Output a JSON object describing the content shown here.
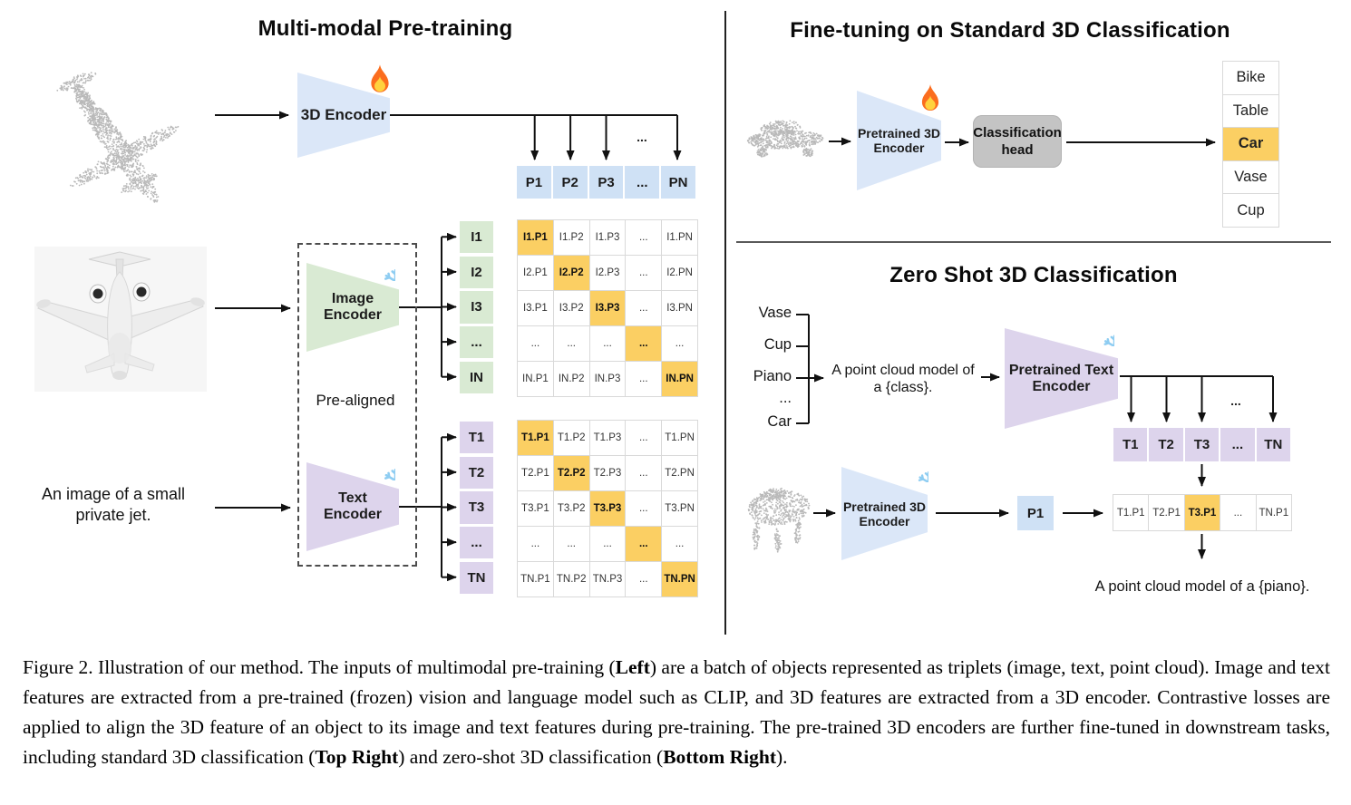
{
  "colors": {
    "blue": "#dbe7f8",
    "bluecell": "#cfe1f5",
    "green": "#d9ead3",
    "purple": "#ddd4ec",
    "orange": "#fbcf63",
    "gray": "#c4c4c4",
    "dot": "#b9b9b9",
    "border": "#d9d9d9"
  },
  "pretraining": {
    "title": "Multi-modal Pre-training",
    "encoder3d_label": "3D Encoder",
    "encoder3d_icon": "fire",
    "image_encoder_label": "Image\nEncoder",
    "image_encoder_icon": "snowflake",
    "text_encoder_label": "Text\nEncoder",
    "text_encoder_icon": "snowflake",
    "prealigned_label": "Pre-aligned",
    "jet_text": "An image of a small private jet.",
    "p_row": [
      "P1",
      "P2",
      "P3",
      "...",
      "PN"
    ],
    "i_labels": [
      "I1",
      "I2",
      "I3",
      "...",
      "IN"
    ],
    "t_labels": [
      "T1",
      "T2",
      "T3",
      "...",
      "TN"
    ],
    "i_matrix": [
      [
        "I1.P1",
        "I1.P2",
        "I1.P3",
        "...",
        "I1.PN"
      ],
      [
        "I2.P1",
        "I2.P2",
        "I2.P3",
        "...",
        "I2.PN"
      ],
      [
        "I3.P1",
        "I3.P2",
        "I3.P3",
        "...",
        "I3.PN"
      ],
      [
        "...",
        "...",
        "...",
        "...",
        "..."
      ],
      [
        "IN.P1",
        "IN.P2",
        "IN.P3",
        "...",
        "IN.PN"
      ]
    ],
    "t_matrix": [
      [
        "T1.P1",
        "T1.P2",
        "T1.P3",
        "...",
        "T1.PN"
      ],
      [
        "T2.P1",
        "T2.P2",
        "T2.P3",
        "...",
        "T2.PN"
      ],
      [
        "T3.P1",
        "T3.P2",
        "T3.P3",
        "...",
        "T3.PN"
      ],
      [
        "...",
        "...",
        "...",
        "...",
        "..."
      ],
      [
        "TN.P1",
        "TN.P2",
        "TN.P3",
        "...",
        "TN.PN"
      ]
    ]
  },
  "finetune": {
    "title": "Fine-tuning on Standard 3D Classification",
    "encoder_label": "Pretrained 3D\nEncoder",
    "encoder_icon": "fire",
    "head_label": "Classification\nhead",
    "classes": [
      "Bike",
      "Table",
      "Car",
      "Vase",
      "Cup"
    ],
    "highlighted_class": "Car"
  },
  "zeroshot": {
    "title": "Zero Shot 3D Classification",
    "prompt_classes": [
      "Vase",
      "Cup",
      "Piano",
      "...",
      "Car"
    ],
    "prompt_text": "A point cloud model of\na {class}.",
    "text_encoder_label": "Pretrained Text\nEncoder",
    "text_encoder_icon": "snowflake",
    "encoder3d_label": "Pretrained 3D\nEncoder",
    "encoder3d_icon": "snowflake",
    "t_row": [
      "T1",
      "T2",
      "T3",
      "...",
      "TN"
    ],
    "p1_label": "P1",
    "sim_row": [
      "T1.P1",
      "T2.P1",
      "T3.P1",
      "...",
      "TN.P1"
    ],
    "highlight_index": 2,
    "result_text": "A point cloud model of a {piano}."
  },
  "misc": {
    "ellipsis": "..."
  },
  "caption": {
    "segments": [
      {
        "text": "Figure 2. Illustration of our method. The inputs of multimodal pre-training (",
        "bold": false
      },
      {
        "text": "Left",
        "bold": true
      },
      {
        "text": ") are a batch of objects represented as triplets (image, text, point cloud). Image and text features are extracted from a pre-trained (frozen) vision and language model such as CLIP, and 3D features are extracted from a 3D encoder. Contrastive losses are applied to align the 3D feature of an object to its image and text features during pre-training. The pre-trained 3D encoders are further fine-tuned in downstream tasks, including standard 3D classification (",
        "bold": false
      },
      {
        "text": "Top Right",
        "bold": true
      },
      {
        "text": ") and zero-shot 3D classification (",
        "bold": false
      },
      {
        "text": "Bottom Right",
        "bold": true
      },
      {
        "text": ").",
        "bold": false
      }
    ]
  }
}
